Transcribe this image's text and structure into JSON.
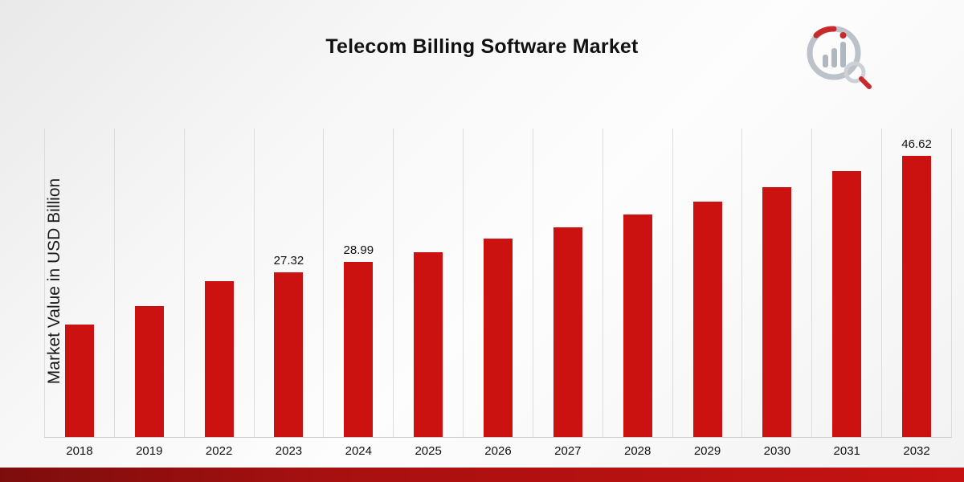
{
  "page": {
    "title": "Telecom Billing Software Market"
  },
  "chart_data": {
    "type": "bar",
    "title": "Telecom Billing Software Market",
    "xlabel": "",
    "ylabel": "Market Value in USD Billion",
    "categories": [
      "2018",
      "2019",
      "2022",
      "2023",
      "2024",
      "2025",
      "2026",
      "2027",
      "2028",
      "2029",
      "2030",
      "2031",
      "2032"
    ],
    "values": [
      18.6,
      21.7,
      25.8,
      27.32,
      28.99,
      30.7,
      32.9,
      34.8,
      36.9,
      39.1,
      41.5,
      44.1,
      46.62
    ],
    "data_labels": {
      "2023": "27.32",
      "2024": "28.99",
      "2032": "46.62"
    },
    "ylim": [
      0,
      51.3
    ],
    "bar_color": "#cc1111",
    "grid": "vertical-only",
    "legend": "none"
  },
  "logo": {
    "name": "market-research-chart-magnifier-logo",
    "ring_color": "#b6bcc4",
    "accent_color": "#c11414",
    "bar_color": "#a9b0b8"
  },
  "footer": {
    "stripe_color_left": "#7d0d0d",
    "stripe_color_right": "#c61212"
  }
}
